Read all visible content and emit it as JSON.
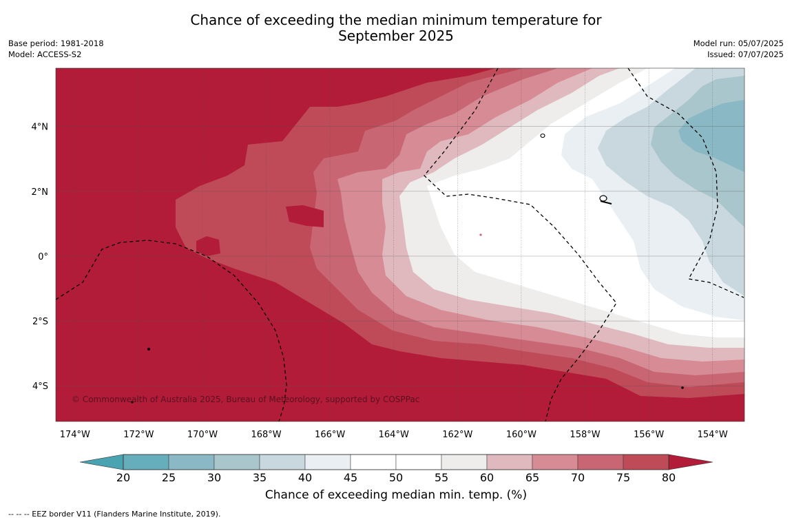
{
  "title": {
    "line1": "Chance of exceeding the median minimum temperature for",
    "line2": "September 2025"
  },
  "meta": {
    "base_period": "Base period: 1981-2018",
    "model": "Model: ACCESS-S2",
    "model_run": "Model run: 05/07/2025",
    "issued": "Issued: 07/07/2025"
  },
  "map": {
    "lon_range": [
      -174.6,
      -153.0
    ],
    "lat_range": [
      -5.1,
      5.8
    ],
    "lon_ticks": [
      {
        "value": -174,
        "label": "174°W"
      },
      {
        "value": -172,
        "label": "172°W"
      },
      {
        "value": -170,
        "label": "170°W"
      },
      {
        "value": -168,
        "label": "168°W"
      },
      {
        "value": -166,
        "label": "166°W"
      },
      {
        "value": -164,
        "label": "164°W"
      },
      {
        "value": -162,
        "label": "162°W"
      },
      {
        "value": -160,
        "label": "160°W"
      },
      {
        "value": -158,
        "label": "158°W"
      },
      {
        "value": -156,
        "label": "156°W"
      },
      {
        "value": -154,
        "label": "154°W"
      }
    ],
    "lat_ticks": [
      {
        "value": 4,
        "label": "4°N"
      },
      {
        "value": 2,
        "label": "2°N"
      },
      {
        "value": 0,
        "label": "0°"
      },
      {
        "value": -2,
        "label": "2°S"
      },
      {
        "value": -4,
        "label": "4°S"
      }
    ],
    "copyright": "© Commonwealth of Australia 2025, Bureau of Meteorology, supported by COSPPac",
    "background_color": "#b31c38",
    "eez_color": "#000000"
  },
  "colorbar": {
    "bins": [
      {
        "lo": 20,
        "hi": 25,
        "color": "#67aebd"
      },
      {
        "lo": 25,
        "hi": 30,
        "color": "#8ab8c5"
      },
      {
        "lo": 30,
        "hi": 35,
        "color": "#a8c6cc"
      },
      {
        "lo": 35,
        "hi": 40,
        "color": "#c9d8de"
      },
      {
        "lo": 40,
        "hi": 45,
        "color": "#e9eff2"
      },
      {
        "lo": 45,
        "hi": 50,
        "color": "#ffffff"
      },
      {
        "lo": 50,
        "hi": 55,
        "color": "#ffffff"
      },
      {
        "lo": 55,
        "hi": 60,
        "color": "#eeedec"
      },
      {
        "lo": 60,
        "hi": 65,
        "color": "#e0b9bf"
      },
      {
        "lo": 65,
        "hi": 70,
        "color": "#d68b95"
      },
      {
        "lo": 70,
        "hi": 75,
        "color": "#c86674"
      },
      {
        "lo": 75,
        "hi": 80,
        "color": "#bf4a58"
      }
    ],
    "under_color": "#4aa3b1",
    "over_color": "#b31c38",
    "ticks": [
      "20",
      "25",
      "30",
      "35",
      "40",
      "45",
      "50",
      "55",
      "60",
      "65",
      "70",
      "75",
      "80"
    ],
    "label": "Chance of exceeding median min. temp. (%)"
  },
  "footer": "-- -- -- EEZ border V11 (Flanders Marine Institute, 2019)."
}
